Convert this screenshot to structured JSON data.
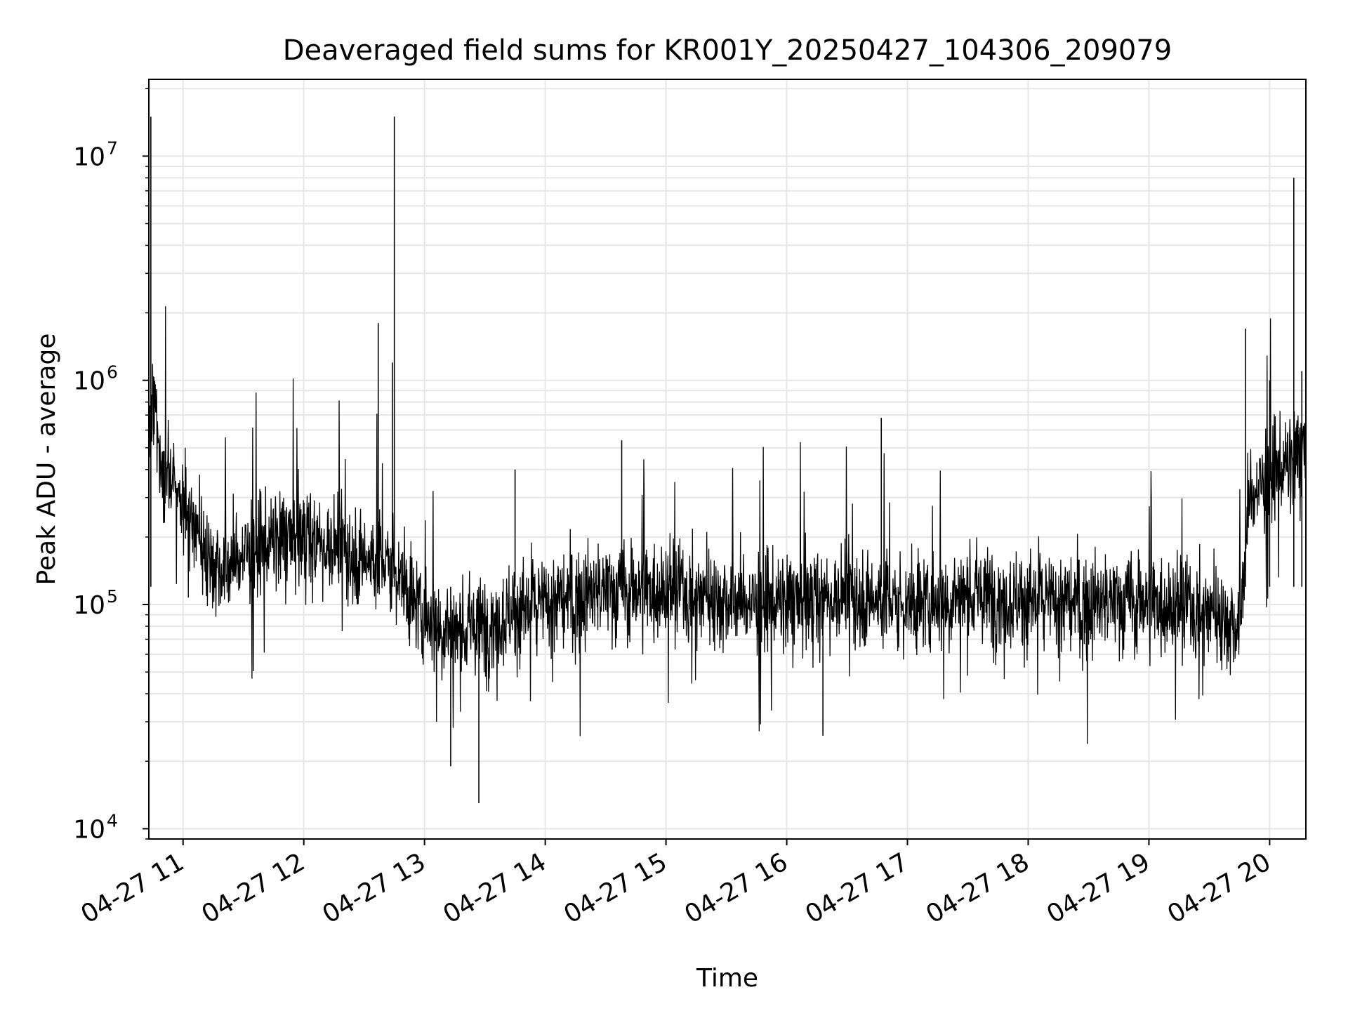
{
  "chart_data": {
    "type": "line",
    "title": "Deaveraged field sums for KR001Y_20250427_104306_209079",
    "xlabel": "Time",
    "ylabel": "Peak ADU - average",
    "yscale": "log",
    "ylim": [
      9000,
      22000000
    ],
    "xlim": [
      "2025-04-27 10:43",
      "2025-04-27 20:18"
    ],
    "grid": true,
    "line_color": "#000000",
    "grid_color": "#e6e6e6",
    "x_ticks": [
      {
        "t": "2025-04-27 11:00",
        "label": "04-27 11"
      },
      {
        "t": "2025-04-27 12:00",
        "label": "04-27 12"
      },
      {
        "t": "2025-04-27 13:00",
        "label": "04-27 13"
      },
      {
        "t": "2025-04-27 14:00",
        "label": "04-27 14"
      },
      {
        "t": "2025-04-27 15:00",
        "label": "04-27 15"
      },
      {
        "t": "2025-04-27 16:00",
        "label": "04-27 16"
      },
      {
        "t": "2025-04-27 17:00",
        "label": "04-27 17"
      },
      {
        "t": "2025-04-27 18:00",
        "label": "04-27 18"
      },
      {
        "t": "2025-04-27 19:00",
        "label": "04-27 19"
      },
      {
        "t": "2025-04-27 20:00",
        "label": "04-27 20"
      }
    ],
    "y_ticks": [
      {
        "value": 10000,
        "base": "10",
        "exp": "4"
      },
      {
        "value": 100000,
        "base": "10",
        "exp": "5"
      },
      {
        "value": 1000000,
        "base": "10",
        "exp": "6"
      },
      {
        "value": 10000000,
        "base": "10",
        "exp": "7"
      }
    ],
    "series": [
      {
        "x": [
          "2025-04-27 10:43",
          "2025-04-27 10:45",
          "2025-04-27 10:50",
          "2025-04-27 11:00",
          "2025-04-27 11:10",
          "2025-04-27 11:20",
          "2025-04-27 11:30",
          "2025-04-27 11:45",
          "2025-04-27 12:00",
          "2025-04-27 12:15",
          "2025-04-27 12:30",
          "2025-04-27 12:45",
          "2025-04-27 12:50",
          "2025-04-27 13:00",
          "2025-04-27 13:15",
          "2025-04-27 13:30",
          "2025-04-27 13:45",
          "2025-04-27 14:00",
          "2025-04-27 14:30",
          "2025-04-27 15:00",
          "2025-04-27 15:30",
          "2025-04-27 16:00",
          "2025-04-27 16:30",
          "2025-04-27 17:00",
          "2025-04-27 17:30",
          "2025-04-27 18:00",
          "2025-04-27 18:30",
          "2025-04-27 19:00",
          "2025-04-27 19:30",
          "2025-04-27 19:45",
          "2025-04-27 19:50",
          "2025-04-27 20:00",
          "2025-04-27 20:10",
          "2025-04-27 20:18"
        ],
        "y": [
          500000,
          800000,
          400000,
          300000,
          180000,
          140000,
          170000,
          190000,
          200000,
          180000,
          160000,
          150000,
          120000,
          90000,
          75000,
          80000,
          95000,
          100000,
          115000,
          120000,
          105000,
          100000,
          110000,
          100000,
          110000,
          105000,
          100000,
          105000,
          95000,
          80000,
          300000,
          380000,
          420000,
          480000
        ]
      }
    ],
    "annotations_spikes": [
      {
        "t": "2025-04-27 10:44",
        "value": 15000000
      },
      {
        "t": "2025-04-27 12:37",
        "value": 1800000
      },
      {
        "t": "2025-04-27 12:45",
        "value": 15000000
      },
      {
        "t": "2025-04-27 12:44",
        "value": 1200000
      },
      {
        "t": "2025-04-27 13:27",
        "value": 13000
      },
      {
        "t": "2025-04-27 13:13",
        "value": 19000
      },
      {
        "t": "2025-04-27 13:45",
        "value": 400000
      },
      {
        "t": "2025-04-27 14:38",
        "value": 540000
      },
      {
        "t": "2025-04-27 16:47",
        "value": 680000
      },
      {
        "t": "2025-04-27 16:18",
        "value": 26000
      },
      {
        "t": "2025-04-27 19:48",
        "value": 1700000
      },
      {
        "t": "2025-04-27 20:12",
        "value": 8000000
      },
      {
        "t": "2025-04-27 20:00",
        "value": 1000000
      },
      {
        "t": "2025-04-27 20:16",
        "value": 1100000
      }
    ]
  }
}
